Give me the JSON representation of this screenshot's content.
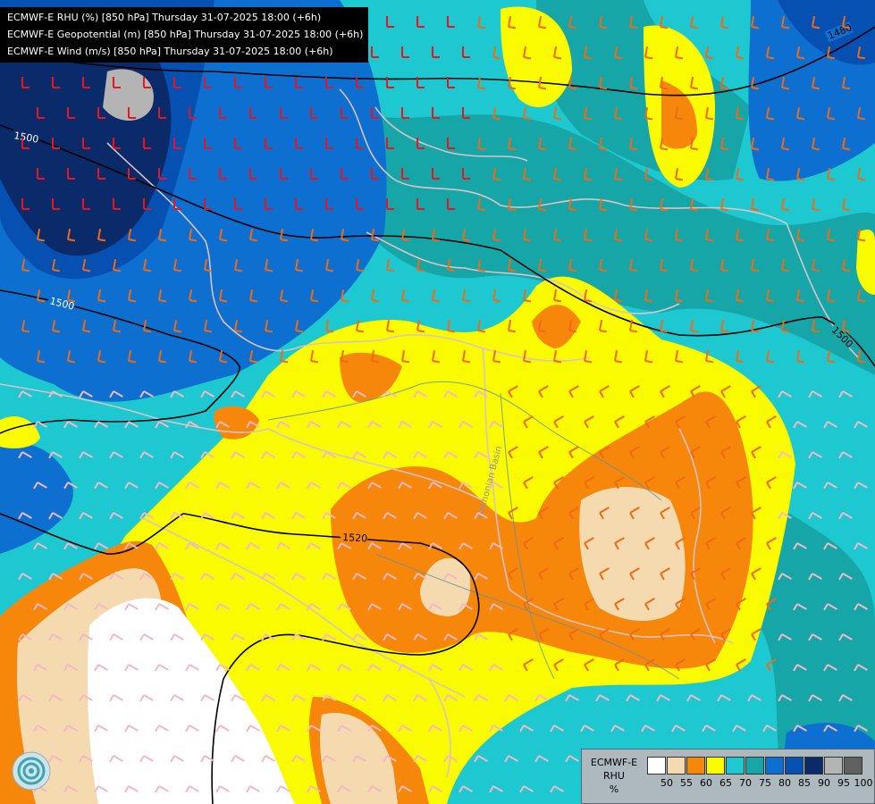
{
  "titles": [
    "ECMWF-E RHU (%) [850 hPa] Thursday 31-07-2025 18:00 (+6h)",
    "ECMWF-E Geopotential (m) [850 hPa] Thursday 31-07-2025 18:00 (+6h)",
    "ECMWF-E Wind (m/s) [850 hPa] Thursday 31-07-2025 18:00 (+6h)"
  ],
  "contour_labels": [
    "1480",
    "1500",
    "1500",
    "1500",
    "1520"
  ],
  "place_label": "Pannonian Basin",
  "legend": {
    "title_lines": [
      "ECMWF-E",
      "RHU",
      "%"
    ],
    "ticks": [
      "50",
      "55",
      "60",
      "65",
      "70",
      "75",
      "80",
      "85",
      "90",
      "95",
      "100"
    ],
    "colors": [
      "#ffffff",
      "#f5dab0",
      "#f7870a",
      "#fafa00",
      "#1ec8d0",
      "#17a6a8",
      "#0d6fd0",
      "#0550b0",
      "#0a2a6a",
      "#b4b4b4",
      "#606060"
    ]
  },
  "colors": {
    "land_border": "#d9c3c9",
    "geopotential_contour": "#000000",
    "wind_barb_strong": "#e8141e",
    "wind_barb_moderate": "#f06a14",
    "wind_barb_light": "#f2b8c8"
  },
  "icons": [
    "wind-barb-icon",
    "ecmwf-logo-icon"
  ]
}
